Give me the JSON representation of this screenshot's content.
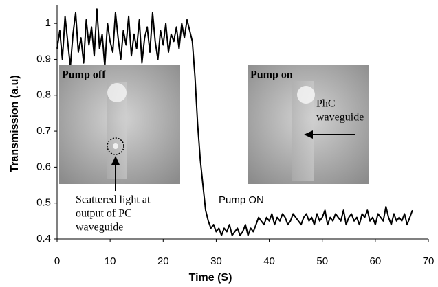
{
  "chart_data": {
    "type": "line",
    "xlabel": "Time (S)",
    "ylabel": "Transmission (a.u)",
    "xlim": [
      0,
      70
    ],
    "ylim": [
      0.4,
      1.05
    ],
    "xticks": [
      0,
      10,
      20,
      30,
      40,
      50,
      60,
      70
    ],
    "yticks": [
      0.4,
      0.5,
      0.6,
      0.7,
      0.8,
      0.9,
      1
    ],
    "color": "#000000",
    "annotations": {
      "pump_off": "Pump off",
      "pump_on": "Pump on",
      "phc": [
        "PhC",
        "waveguide"
      ],
      "scattered": [
        "Scattered light at",
        "output of PC",
        "waveguide"
      ],
      "pump_on_label": "Pump ON"
    },
    "x": [
      0,
      0.5,
      1,
      1.5,
      2,
      2.5,
      3,
      3.5,
      4,
      4.5,
      5,
      5.5,
      6,
      6.5,
      7,
      7.5,
      8,
      8.5,
      9,
      9.5,
      10,
      10.5,
      11,
      11.5,
      12,
      12.5,
      13,
      13.5,
      14,
      14.5,
      15,
      15.5,
      16,
      16.5,
      17,
      17.5,
      18,
      18.5,
      19,
      19.5,
      20,
      20.5,
      21,
      21.5,
      22,
      22.5,
      23,
      23.5,
      24,
      24.5,
      25,
      25.5,
      26,
      26.5,
      27,
      27.5,
      28,
      28.5,
      29,
      29.5,
      30,
      30.5,
      31,
      31.5,
      32,
      32.5,
      33,
      33.5,
      34,
      34.5,
      35,
      35.5,
      36,
      36.5,
      37,
      37.5,
      38,
      38.5,
      39,
      39.5,
      40,
      40.5,
      41,
      41.5,
      42,
      42.5,
      43,
      43.5,
      44,
      44.5,
      45,
      45.5,
      46,
      46.5,
      47,
      47.5,
      48,
      48.5,
      49,
      49.5,
      50,
      50.5,
      51,
      51.5,
      52,
      52.5,
      53,
      53.5,
      54,
      54.5,
      55,
      55.5,
      56,
      56.5,
      57,
      57.5,
      58,
      58.5,
      59,
      59.5,
      60,
      60.5,
      61,
      61.5,
      62,
      62.5,
      63,
      63.5,
      64,
      64.5,
      65,
      65.5,
      66,
      66.5,
      67
    ],
    "values": [
      0.93,
      0.98,
      0.9,
      1.02,
      0.95,
      0.88,
      0.97,
      1.03,
      0.92,
      0.96,
      0.89,
      1.01,
      0.94,
      0.99,
      0.91,
      1.04,
      0.93,
      0.97,
      0.88,
      1.0,
      0.95,
      0.92,
      1.03,
      0.96,
      0.9,
      0.98,
      0.94,
      1.02,
      0.91,
      0.97,
      0.93,
      1.01,
      0.89,
      0.96,
      0.99,
      0.92,
      1.03,
      0.95,
      0.9,
      0.98,
      0.94,
      1.0,
      0.92,
      0.97,
      0.95,
      0.99,
      0.93,
      1.0,
      0.96,
      1.01,
      0.98,
      0.95,
      0.85,
      0.72,
      0.62,
      0.55,
      0.48,
      0.45,
      0.43,
      0.44,
      0.42,
      0.43,
      0.41,
      0.43,
      0.42,
      0.44,
      0.41,
      0.42,
      0.43,
      0.41,
      0.42,
      0.44,
      0.41,
      0.43,
      0.42,
      0.44,
      0.46,
      0.45,
      0.44,
      0.46,
      0.45,
      0.47,
      0.44,
      0.46,
      0.45,
      0.47,
      0.46,
      0.44,
      0.45,
      0.47,
      0.46,
      0.45,
      0.44,
      0.46,
      0.47,
      0.45,
      0.46,
      0.44,
      0.47,
      0.45,
      0.46,
      0.48,
      0.44,
      0.46,
      0.45,
      0.47,
      0.46,
      0.45,
      0.48,
      0.44,
      0.46,
      0.47,
      0.45,
      0.46,
      0.44,
      0.47,
      0.46,
      0.48,
      0.45,
      0.46,
      0.44,
      0.47,
      0.46,
      0.45,
      0.49,
      0.46,
      0.44,
      0.47,
      0.45,
      0.46,
      0.45,
      0.47,
      0.44,
      0.46,
      0.48
    ]
  }
}
